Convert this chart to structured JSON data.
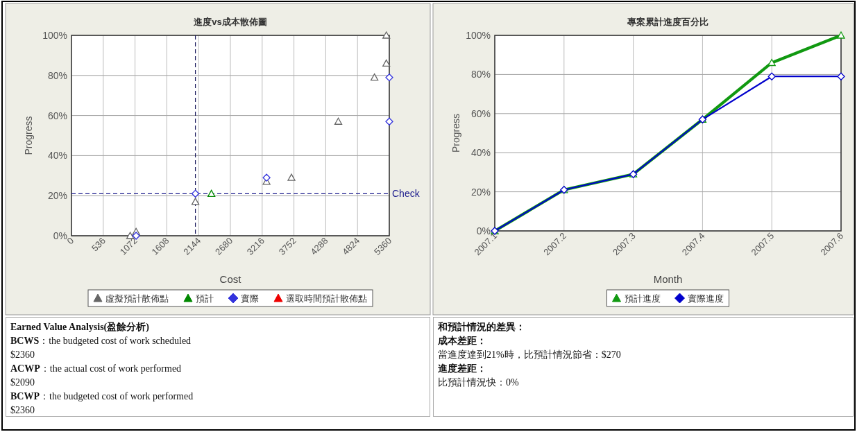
{
  "chart_data": [
    {
      "type": "scatter",
      "title": "進度vs成本散佈圖",
      "xlabel": "Cost",
      "ylabel": "Progress",
      "xlim": [
        0,
        5360
      ],
      "xticks": [
        0,
        536,
        1072,
        1608,
        2144,
        2680,
        3216,
        3752,
        4288,
        4824,
        5360
      ],
      "ylim": [
        0,
        100
      ],
      "yticks": [
        {
          "value": 0,
          "label": "0%"
        },
        {
          "value": 20,
          "label": "20%"
        },
        {
          "value": 40,
          "label": "40%"
        },
        {
          "value": 60,
          "label": "60%"
        },
        {
          "value": 80,
          "label": "80%"
        },
        {
          "value": 100,
          "label": "100%"
        }
      ],
      "grid": true,
      "legend": "bottom",
      "ref_lines": [
        {
          "axis": "y",
          "value": 21,
          "label": "Check",
          "color": "#1a1a8c",
          "line_style": "dashed"
        },
        {
          "axis": "x",
          "value": 2090,
          "color": "#1a1a5c",
          "line_style": "dashed"
        }
      ],
      "series": [
        {
          "name": "虛擬預計散佈點",
          "color": "#666666",
          "marker": "triangle",
          "x": [
            990,
            1090,
            2090,
            3290,
            3710,
            4500,
            5110,
            5310,
            5310
          ],
          "values": [
            0,
            2,
            17,
            27,
            29,
            57,
            79,
            86,
            100
          ]
        },
        {
          "name": "預計",
          "color": "#008800",
          "marker": "triangle",
          "x": [
            2360
          ],
          "values": [
            21
          ]
        },
        {
          "name": "實際",
          "color": "#3333dd",
          "marker": "diamond",
          "x": [
            1090,
            2090,
            3290,
            5360,
            5360
          ],
          "values": [
            0,
            21,
            29,
            57,
            79
          ]
        },
        {
          "name": "選取時間預計散佈點",
          "color": "#ee0000",
          "marker": "triangle"
        }
      ]
    },
    {
      "type": "line",
      "title": "專案累計進度百分比",
      "xlabel": "Month",
      "ylabel": "Progress",
      "categories": [
        "2007.1",
        "2007.2",
        "2007.3",
        "2007.4",
        "2007.5",
        "2007.6"
      ],
      "ylim": [
        0,
        100
      ],
      "yticks": [
        {
          "value": 0,
          "label": "0%"
        },
        {
          "value": 20,
          "label": "20%"
        },
        {
          "value": 40,
          "label": "40%"
        },
        {
          "value": 60,
          "label": "60%"
        },
        {
          "value": 80,
          "label": "80%"
        },
        {
          "value": 100,
          "label": "100%"
        }
      ],
      "grid": true,
      "legend": "bottom",
      "series": [
        {
          "name": "預計進度",
          "color": "#119911",
          "marker": "triangle",
          "values": [
            0,
            21,
            29,
            57,
            86,
            100
          ]
        },
        {
          "name": "實際進度",
          "color": "#0000cc",
          "marker": "diamond",
          "values": [
            0,
            21,
            29,
            57,
            79,
            79
          ]
        }
      ]
    },
    {
      "type": "other",
      "title": "Earned Value Analysis(盈餘分析)",
      "annotations": [
        "BCWS：the budgeted cost of work scheduled",
        "$2360",
        "ACWP：the actual cost of work performed",
        "$2090",
        "BCWP：the budgeted cost of work performed",
        "$2360"
      ]
    },
    {
      "type": "other",
      "title": "和預計情況的差異：",
      "annotations": [
        "成本差距：",
        "當進度達到21%時，比預計情況節省：$270",
        "進度差距：",
        "比預計情況快：0%"
      ]
    }
  ]
}
